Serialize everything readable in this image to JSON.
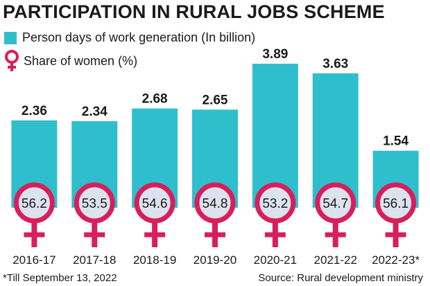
{
  "title": "PARTICIPATION IN RURAL JOBS SCHEME",
  "legend": {
    "bars_label": "Person days of work generation (In billion)",
    "women_label": "Share of women (%)"
  },
  "colors": {
    "bar": "#2fbfcc",
    "women_symbol": "#d81e5b",
    "women_circle_fill": "#dde2ef",
    "text": "#1a1a1a"
  },
  "chart_data": {
    "type": "bar",
    "title": "PARTICIPATION IN RURAL JOBS SCHEME",
    "categories": [
      "2016-17",
      "2017-18",
      "2018-19",
      "2019-20",
      "2020-21",
      "2021-22",
      "2022-23*"
    ],
    "series": [
      {
        "name": "Person days of work generation (In billion)",
        "values": [
          2.36,
          2.34,
          2.68,
          2.65,
          3.89,
          3.63,
          1.54
        ]
      },
      {
        "name": "Share of women (%)",
        "values": [
          56.2,
          53.5,
          54.6,
          54.8,
          53.2,
          54.7,
          56.1
        ]
      }
    ],
    "ylim": [
      0,
      3.89
    ],
    "grid": false
  },
  "footnote": "*Till September 13, 2022",
  "source": "Source: Rural development ministry"
}
